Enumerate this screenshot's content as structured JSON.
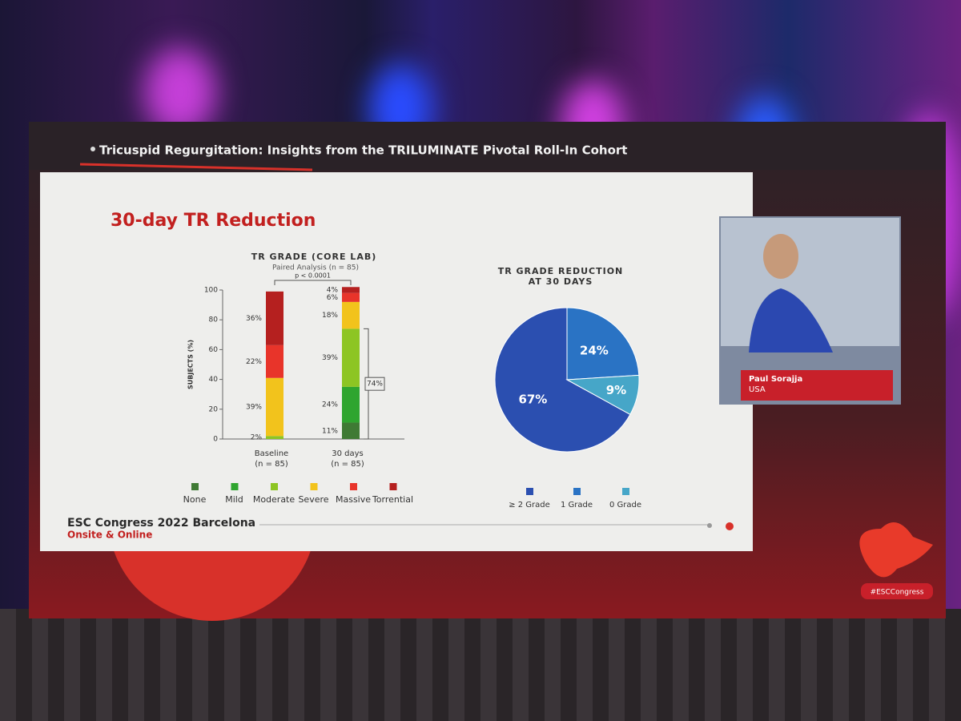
{
  "slide": {
    "header": "Tricuspid Regurgitation: Insights from the TRILUMINATE Pivotal Roll-In Cohort",
    "title": "30-day TR Reduction",
    "footer_title": "ESC Congress 2022 Barcelona",
    "footer_subtitle": "Onsite & Online",
    "speaker_name": "Paul Sorajja",
    "speaker_country": "USA",
    "hashtag": "#ESCCongress"
  },
  "chart_data": [
    {
      "type": "stacked-bar",
      "title": "TR GRADE (CORE LAB)",
      "subtitle": "Paired Analysis (n = 85)",
      "y_label": "SUBJECTS (%)",
      "categories": [
        "Baseline",
        "30 days"
      ],
      "category_notes": [
        "(n = 85)",
        "(n = 85)"
      ],
      "ylim": [
        0,
        100
      ],
      "yticks": [
        0,
        20,
        40,
        60,
        80,
        100
      ],
      "series": [
        {
          "name": "None",
          "color": "#3f7a34",
          "values": [
            0,
            11
          ],
          "value_labels": [
            null,
            "11%"
          ]
        },
        {
          "name": "Mild",
          "color": "#2fa52f",
          "values": [
            0,
            24
          ],
          "value_labels": [
            null,
            "24%"
          ]
        },
        {
          "name": "Moderate",
          "color": "#8dc523",
          "values": [
            2,
            39
          ],
          "value_labels": [
            "2%",
            "39%"
          ]
        },
        {
          "name": "Severe",
          "color": "#f2c31c",
          "values": [
            39,
            18
          ],
          "value_labels": [
            "39%",
            "18%"
          ]
        },
        {
          "name": "Massive",
          "color": "#e8342a",
          "values": [
            22,
            6
          ],
          "value_labels": [
            "22%",
            "6%"
          ]
        },
        {
          "name": "Torrential",
          "color": "#b5201f",
          "values": [
            36,
            4
          ],
          "value_labels": [
            "36%",
            "4%"
          ]
        }
      ],
      "significance": "p < 0.0001",
      "bracket_label": "74%"
    },
    {
      "type": "pie",
      "title": "TR GRADE REDUCTION AT 30 DAYS",
      "categories": [
        "≥ 2 Grade",
        "1 Grade",
        "0 Grade"
      ],
      "values": [
        67,
        24,
        9
      ],
      "value_labels": [
        "67%",
        "24%",
        "9%"
      ],
      "colors": [
        "#2b4fb0",
        "#2a73c4",
        "#46a6c8"
      ]
    }
  ]
}
